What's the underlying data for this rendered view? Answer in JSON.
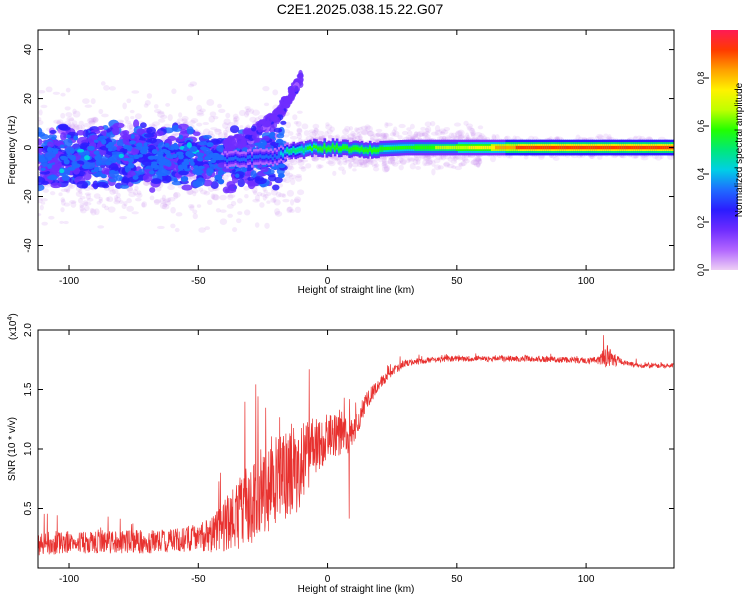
{
  "title": "C2E1.2025.038.15.22.G07",
  "colors": {
    "snr_line": "#e8312f",
    "colorbar_stops": [
      "#eecff5",
      "#b266ff",
      "#6f2dff",
      "#2b1cff",
      "#1f6bff",
      "#00cfe6",
      "#00e87a",
      "#22ff00",
      "#bfff00",
      "#fff200",
      "#ffa000",
      "#ff3a00",
      "#ff1a55"
    ]
  },
  "chart_data": [
    {
      "type": "heatmap",
      "xlabel": "Height of straight line (km)",
      "ylabel": "Frequency (Hz)",
      "xlim": [
        -112,
        134
      ],
      "ylim": [
        -50,
        48
      ],
      "xticks": [
        -100,
        -50,
        0,
        50,
        100
      ],
      "yticks": [
        -40,
        -20,
        0,
        20,
        40
      ],
      "grid": false,
      "colorbar": {
        "label": "Normalized spectral amplitude",
        "range": [
          0,
          1
        ],
        "ticks": [
          0.0,
          0.2,
          0.4,
          0.6,
          0.8
        ],
        "tick_labels": [
          "0.0",
          "0.2",
          "0.4",
          "0.6",
          "0.8"
        ]
      },
      "ridge": [
        {
          "x": -112,
          "f": -5,
          "amp": 0.25
        },
        {
          "x": -100,
          "f": -4,
          "amp": 0.3
        },
        {
          "x": -80,
          "f": -3,
          "amp": 0.3
        },
        {
          "x": -60,
          "f": -4,
          "amp": 0.3
        },
        {
          "x": -45,
          "f": -5,
          "amp": 0.3
        },
        {
          "x": -20,
          "f": -4,
          "amp": 0.35
        },
        {
          "x": -15,
          "f": -1,
          "amp": 0.5
        },
        {
          "x": 0,
          "f": 0,
          "amp": 0.6
        },
        {
          "x": 10,
          "f": -1,
          "amp": 0.6
        },
        {
          "x": 30,
          "f": 0,
          "amp": 0.55
        },
        {
          "x": 60,
          "f": 0,
          "amp": 0.75
        },
        {
          "x": 80,
          "f": 0,
          "amp": 0.95
        },
        {
          "x": 134,
          "f": 0,
          "amp": 0.95
        }
      ],
      "branch": [
        {
          "x": -40,
          "f": 0
        },
        {
          "x": -30,
          "f": 5
        },
        {
          "x": -20,
          "f": 12
        },
        {
          "x": -15,
          "f": 20
        },
        {
          "x": -10,
          "f": 29
        }
      ]
    },
    {
      "type": "line",
      "xlabel": "Height of straight line (km)",
      "ylabel": "SNR (10 * v/v)",
      "multiplier_label": "(x10",
      "multiplier_exp": "4",
      "multiplier_close": ")",
      "xlim": [
        -112,
        134
      ],
      "ylim": [
        0,
        2.0
      ],
      "xticks": [
        -100,
        -50,
        0,
        50,
        100
      ],
      "yticks": [
        0.5,
        1.0,
        1.5,
        2.0
      ],
      "ytick_labels": [
        "0.5",
        "1.0",
        "1.5",
        "2.0"
      ],
      "grid": false,
      "series": [
        {
          "name": "",
          "x": [
            -112,
            -100,
            -90,
            -80,
            -70,
            -60,
            -50,
            -45,
            -40,
            -35,
            -30,
            -25,
            -20,
            -15,
            -12,
            -10,
            -5,
            0,
            5,
            8,
            10,
            12,
            15,
            20,
            25,
            30,
            40,
            50,
            60,
            70,
            80,
            90,
            100,
            105,
            108,
            110,
            115,
            120,
            134
          ],
          "mean": [
            0.2,
            0.22,
            0.22,
            0.22,
            0.22,
            0.23,
            0.25,
            0.28,
            0.35,
            0.45,
            0.55,
            0.65,
            0.75,
            0.8,
            0.85,
            0.9,
            1.0,
            1.1,
            1.15,
            1.1,
            1.15,
            1.25,
            1.4,
            1.55,
            1.65,
            1.72,
            1.75,
            1.76,
            1.76,
            1.76,
            1.76,
            1.75,
            1.74,
            1.74,
            1.78,
            1.76,
            1.72,
            1.7,
            1.7
          ],
          "noise": [
            0.1,
            0.1,
            0.1,
            0.1,
            0.1,
            0.1,
            0.12,
            0.15,
            0.22,
            0.3,
            0.35,
            0.38,
            0.4,
            0.4,
            0.4,
            0.35,
            0.25,
            0.2,
            0.2,
            0.15,
            0.12,
            0.1,
            0.08,
            0.05,
            0.04,
            0.03,
            0.025,
            0.025,
            0.025,
            0.025,
            0.025,
            0.025,
            0.025,
            0.04,
            0.1,
            0.06,
            0.025,
            0.02,
            0.02
          ]
        }
      ]
    }
  ]
}
